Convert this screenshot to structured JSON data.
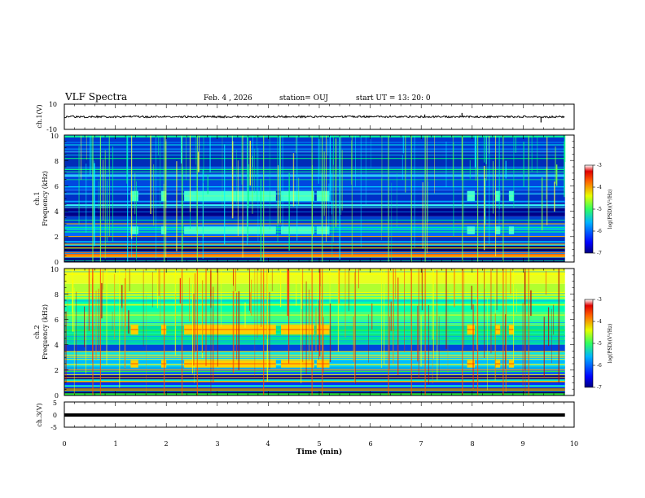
{
  "header": {
    "title": "VLF Spectra",
    "date": "Feb. 4 , 2026",
    "station": "station= OUJ",
    "start": "start UT =  13: 20: 0"
  },
  "chart_data": [
    {
      "type": "line",
      "name": "ch1-waveform",
      "ylabel": "ch.1(V)",
      "ylim": [
        -10,
        10
      ],
      "ytick_labels": [
        "10",
        "-10"
      ],
      "baseline": 0,
      "spikes": [
        {
          "x": 7.07,
          "y": 1.8
        },
        {
          "x": 7.8,
          "y": 3.0
        },
        {
          "x": 9.35,
          "y": -4.5
        }
      ]
    },
    {
      "type": "heatmap",
      "name": "ch1-spectrogram",
      "ylabel_line1": "ch.1",
      "ylabel_line2": "Frequency (kHz)",
      "ylim": [
        0,
        10
      ],
      "ytick_labels": [
        "0",
        "2",
        "4",
        "6",
        "8",
        "10"
      ],
      "colorbar": {
        "label": "log(PSD)(V²/Hz)",
        "range": [
          -7,
          -3
        ],
        "tick_labels": [
          "-3",
          "-4",
          "-5",
          "-6",
          "-7"
        ]
      },
      "bursts": [
        [
          1.3,
          1.45
        ],
        [
          1.9,
          2.0
        ],
        [
          2.35,
          4.15
        ],
        [
          4.25,
          4.9
        ],
        [
          4.95,
          5.2
        ],
        [
          7.9,
          8.05
        ],
        [
          8.45,
          8.55
        ],
        [
          8.72,
          8.82
        ]
      ]
    },
    {
      "type": "heatmap",
      "name": "ch2-spectrogram",
      "ylabel_line1": "ch.2",
      "ylabel_line2": "Frequency (kHz)",
      "ylim": [
        0,
        10
      ],
      "ytick_labels": [
        "0",
        "2",
        "4",
        "6",
        "8",
        "10"
      ],
      "colorbar": {
        "label": "log(PSD)(V²/Hz)",
        "range": [
          -7,
          -3
        ],
        "tick_labels": [
          "-3",
          "-4",
          "-5",
          "-6",
          "-7"
        ]
      },
      "bursts": [
        [
          1.3,
          1.45
        ],
        [
          1.9,
          2.0
        ],
        [
          2.35,
          4.15
        ],
        [
          4.25,
          4.9
        ],
        [
          4.95,
          5.2
        ],
        [
          7.9,
          8.05
        ],
        [
          8.45,
          8.55
        ],
        [
          8.72,
          8.82
        ]
      ]
    },
    {
      "type": "line",
      "name": "ch3-waveform",
      "ylabel": "ch.3(V)",
      "ylim": [
        -5,
        5
      ],
      "ytick_labels": [
        "5",
        "0",
        "-5"
      ],
      "baseline": 0
    }
  ],
  "xaxis": {
    "label": "Time (min)",
    "range": [
      0,
      10
    ],
    "tick_labels": [
      "0",
      "1",
      "2",
      "3",
      "4",
      "5",
      "6",
      "7",
      "8",
      "9",
      "10"
    ]
  },
  "colors": {
    "axis": "#000000",
    "trace": "#000000",
    "spectro_low": "#000080",
    "spectro_high": "#800000"
  }
}
